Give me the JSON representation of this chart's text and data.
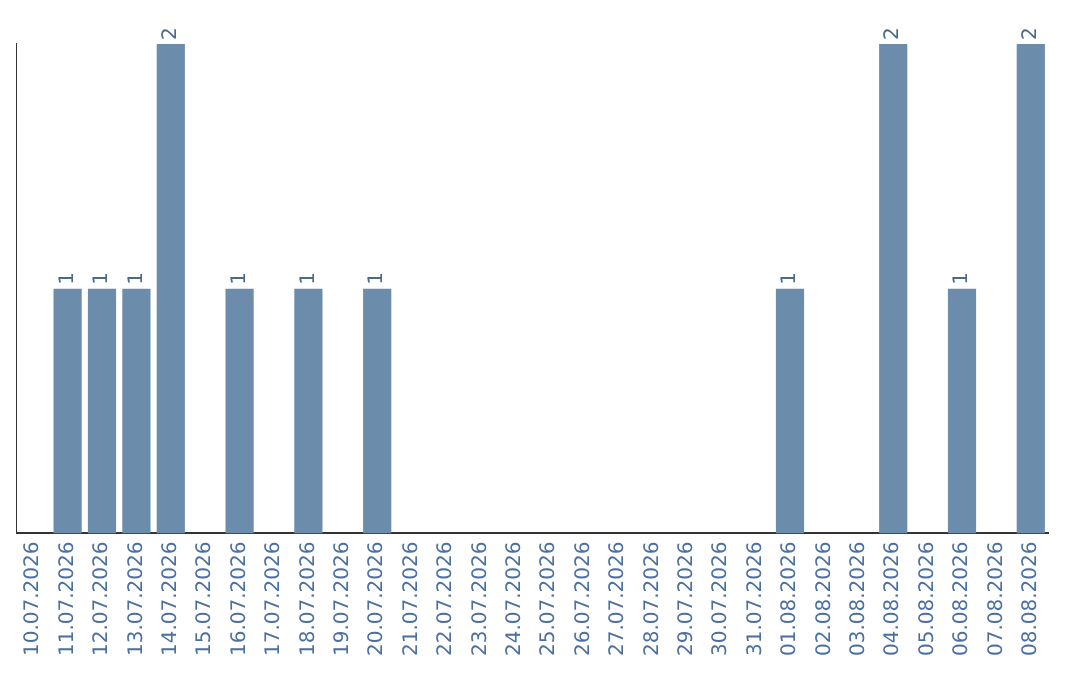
{
  "chart_data": {
    "type": "bar",
    "categories": [
      "10.07.2026",
      "11.07.2026",
      "12.07.2026",
      "13.07.2026",
      "14.07.2026",
      "15.07.2026",
      "16.07.2026",
      "17.07.2026",
      "18.07.2026",
      "19.07.2026",
      "20.07.2026",
      "21.07.2026",
      "22.07.2026",
      "23.07.2026",
      "24.07.2026",
      "25.07.2026",
      "26.07.2026",
      "27.07.2026",
      "28.07.2026",
      "29.07.2026",
      "30.07.2026",
      "31.07.2026",
      "01.08.2026",
      "02.08.2026",
      "03.08.2026",
      "04.08.2026",
      "05.08.2026",
      "06.08.2026",
      "07.08.2026",
      "08.08.2026"
    ],
    "values": [
      0,
      1,
      1,
      1,
      2,
      0,
      1,
      0,
      1,
      0,
      1,
      0,
      0,
      0,
      0,
      0,
      0,
      0,
      0,
      0,
      0,
      0,
      1,
      0,
      0,
      2,
      0,
      1,
      0,
      2
    ],
    "value_labels": [
      null,
      "1",
      "1",
      "1",
      "2",
      null,
      "1",
      null,
      "1",
      null,
      "1",
      null,
      null,
      null,
      null,
      null,
      null,
      null,
      null,
      null,
      null,
      null,
      "1",
      null,
      null,
      "2",
      null,
      "1",
      null,
      "2"
    ],
    "color": "#6b8dab",
    "ylim": [
      0,
      2
    ],
    "tick_labels": "x",
    "grid": false,
    "legend": false
  }
}
